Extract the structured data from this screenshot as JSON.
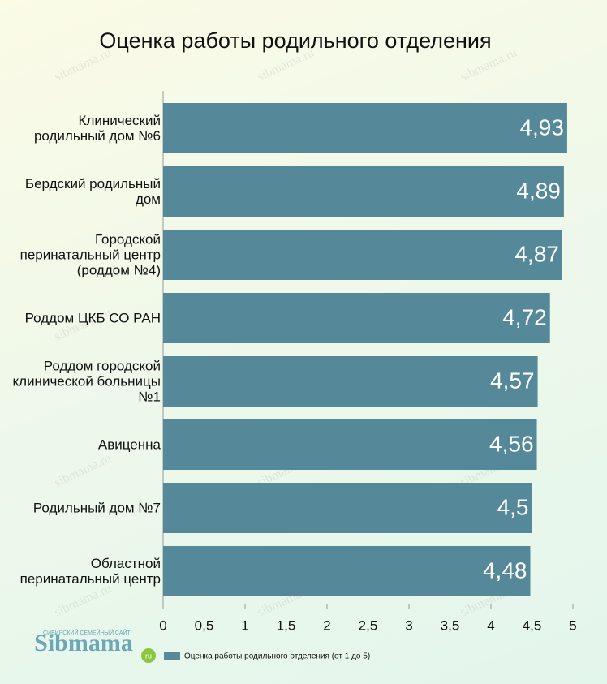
{
  "chart_data": {
    "type": "bar",
    "orientation": "horizontal",
    "title": "Оценка работы родильного отделения",
    "categories": [
      "Клинический родильный дом №6",
      "Бердский родильный дом",
      "Городской перинатальный центр (роддом №4)",
      "Роддом ЦКБ СО РАН",
      "Роддом городской клинической больницы №1",
      "Авиценна",
      "Родильный дом №7",
      "Областной перинатальный центр"
    ],
    "series": [
      {
        "name": "Оценка работы родильного отделения (от 1 до 5)",
        "color": "#558898",
        "values": [
          4.93,
          4.89,
          4.87,
          4.72,
          4.57,
          4.56,
          4.5,
          4.48
        ],
        "value_labels": [
          "4,93",
          "4,89",
          "4,87",
          "4,72",
          "4,57",
          "4,56",
          "4,5",
          "4,48"
        ]
      }
    ],
    "xlim": [
      0,
      5
    ],
    "xticks": [
      0,
      {
        "value": 0.5,
        "label": "0,5"
      },
      1,
      {
        "value": 1.5,
        "label": "1,5"
      },
      2,
      {
        "value": 2.5,
        "label": "2,5"
      },
      3,
      {
        "value": 3.5,
        "label": "3,5"
      },
      4,
      {
        "value": 4.5,
        "label": "4,5"
      },
      5
    ],
    "legend": "bottom"
  },
  "logo": {
    "name": "Sibmama",
    "tagline": "СИБИРСКИЙ СЕМЕЙНЫЙ САЙТ",
    "domain": "ru"
  },
  "watermark": "sibmama.ru"
}
